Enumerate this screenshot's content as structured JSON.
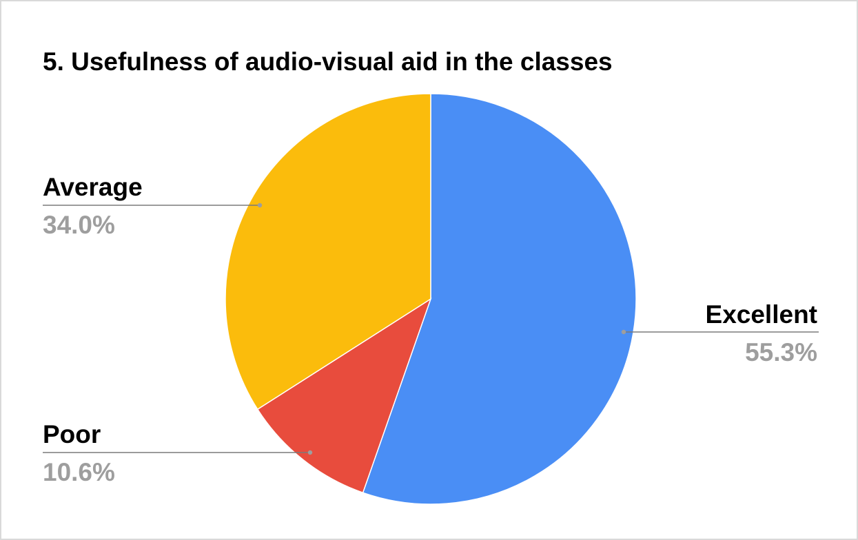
{
  "chart_data": {
    "type": "pie",
    "title": "5. Usefulness of audio-visual aid in the classes",
    "slices": [
      {
        "label": "Excellent",
        "value": 55.3,
        "display": "55.3%",
        "color": "#4a8ef5"
      },
      {
        "label": "Poor",
        "value": 10.6,
        "display": "10.6%",
        "color": "#e84c3d"
      },
      {
        "label": "Average",
        "value": 34.0,
        "display": "34.0%",
        "color": "#fbbc0c"
      }
    ],
    "start_angle": "12 o'clock",
    "direction": "clockwise",
    "legend": "none (slice labels with leader lines)"
  }
}
